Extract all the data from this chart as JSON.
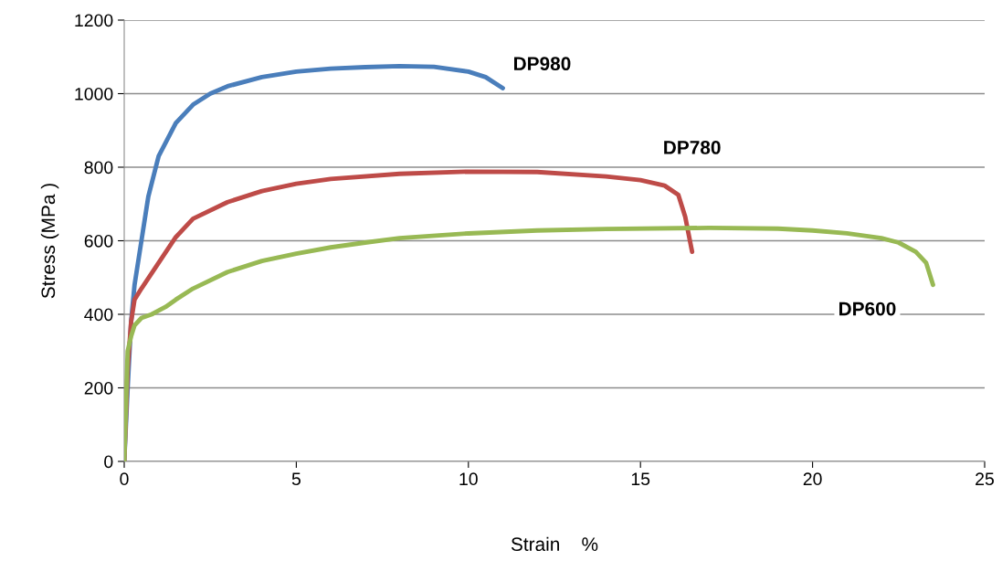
{
  "chart_data": {
    "type": "line",
    "xlabel": "Strain    %",
    "ylabel": "Stress (MPa )",
    "xlim": [
      0,
      25
    ],
    "xticks": [
      0,
      5,
      10,
      15,
      20,
      25
    ],
    "ylim": [
      0,
      1200
    ],
    "yticks": [
      0,
      200,
      400,
      600,
      800,
      1000,
      1200
    ],
    "grid": "y",
    "legend": false,
    "marker": "none",
    "line_style": "solid",
    "series": [
      {
        "name": "DP980",
        "color": "#4a7ebb",
        "x": [
          0,
          0.1,
          0.2,
          0.3,
          0.5,
          0.7,
          1.0,
          1.5,
          2.0,
          2.5,
          3,
          4,
          5,
          6,
          7,
          8,
          9,
          10,
          10.5,
          11
        ],
        "values": [
          0,
          200,
          380,
          480,
          600,
          720,
          830,
          920,
          970,
          1000,
          1020,
          1045,
          1060,
          1068,
          1072,
          1075,
          1073,
          1060,
          1045,
          1015
        ]
      },
      {
        "name": "DP780",
        "color": "#be4b48",
        "x": [
          0,
          0.1,
          0.2,
          0.3,
          0.5,
          1.0,
          1.5,
          2,
          3,
          4,
          5,
          6,
          8,
          10,
          12,
          14,
          15,
          15.7,
          16.1,
          16.3,
          16.5
        ],
        "values": [
          0,
          250,
          380,
          440,
          470,
          540,
          610,
          660,
          705,
          735,
          755,
          768,
          782,
          788,
          787,
          775,
          765,
          750,
          725,
          665,
          570
        ]
      },
      {
        "name": "DP600",
        "color": "#98b954",
        "x": [
          0,
          0.05,
          0.1,
          0.2,
          0.3,
          0.5,
          0.8,
          1.0,
          1.2,
          1.5,
          2,
          3,
          4,
          5,
          6,
          7,
          8,
          10,
          12,
          14,
          17,
          19,
          20,
          21,
          22,
          22.5,
          23,
          23.3,
          23.5
        ],
        "values": [
          0,
          150,
          300,
          340,
          370,
          390,
          400,
          410,
          420,
          440,
          470,
          515,
          545,
          565,
          582,
          595,
          607,
          620,
          628,
          632,
          635,
          633,
          628,
          620,
          607,
          595,
          570,
          540,
          480
        ]
      }
    ]
  }
}
